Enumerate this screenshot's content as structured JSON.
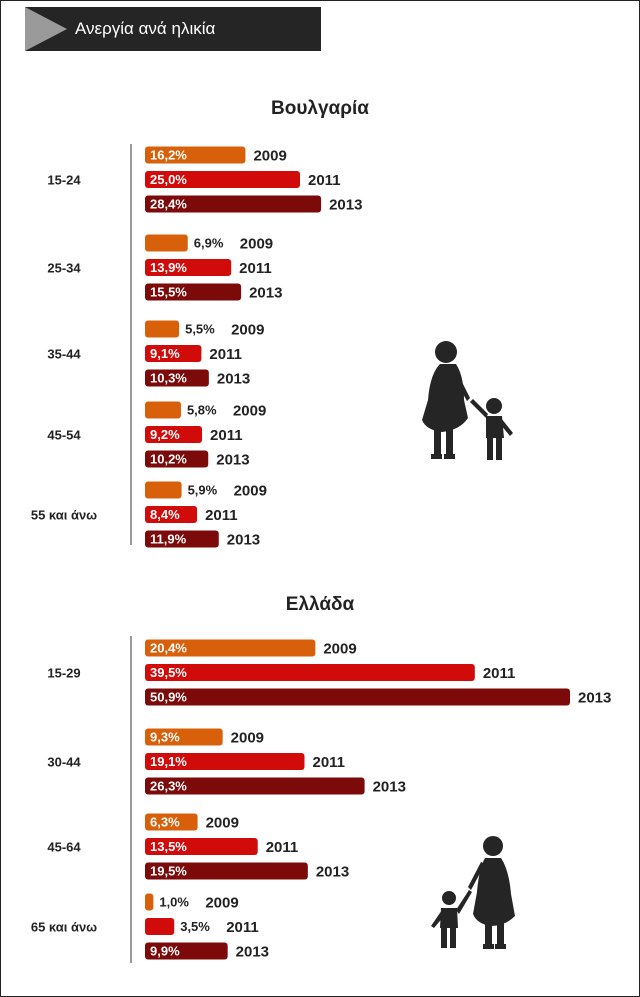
{
  "header": {
    "title": "Ανεργία ανά ηλικία"
  },
  "colors": {
    "2009": "#d9600b",
    "2011": "#d10a0a",
    "2013": "#7d0a0a",
    "header_bg": "#252525",
    "icon": "#252525"
  },
  "icons": [
    "grandmother-child-silhouette",
    "grandmother-child-silhouette"
  ],
  "chart_data": [
    {
      "type": "bar",
      "orientation": "horizontal",
      "title": "Βουλγαρία",
      "categories": [
        "15-24",
        "25-34",
        "35-44",
        "45-54",
        "55 και άνω"
      ],
      "series": [
        {
          "name": "2009",
          "values": [
            16.2,
            6.9,
            5.5,
            5.8,
            5.9
          ],
          "labels": [
            "16,2%",
            "6,9%",
            "5,5%",
            "5,8%",
            "5,9%"
          ]
        },
        {
          "name": "2011",
          "values": [
            25.0,
            13.9,
            9.1,
            9.2,
            8.4
          ],
          "labels": [
            "25,0%",
            "13,9%",
            "9,1%",
            "9,2%",
            "8,4%"
          ]
        },
        {
          "name": "2013",
          "values": [
            28.4,
            15.5,
            10.3,
            10.2,
            11.9
          ],
          "labels": [
            "28,4%",
            "15,5%",
            "10,3%",
            "10,2%",
            "11,9%"
          ]
        }
      ],
      "value_unit": "%",
      "legend": "year label at bar end",
      "grid": false
    },
    {
      "type": "bar",
      "orientation": "horizontal",
      "title": "Ελλάδα",
      "categories": [
        "15-29",
        "30-44",
        "45-64",
        "65 και άνω"
      ],
      "series": [
        {
          "name": "2009",
          "values": [
            20.4,
            9.3,
            6.3,
            1.0
          ],
          "labels": [
            "20,4%",
            "9,3%",
            "6,3%",
            "1,0%"
          ]
        },
        {
          "name": "2011",
          "values": [
            39.5,
            19.1,
            13.5,
            3.5
          ],
          "labels": [
            "39,5%",
            "19,1%",
            "13,5%",
            "3,5%"
          ]
        },
        {
          "name": "2013",
          "values": [
            50.9,
            26.3,
            19.5,
            9.9
          ],
          "labels": [
            "50,9%",
            "26,3%",
            "19,5%",
            "9,9%"
          ]
        }
      ],
      "value_unit": "%",
      "legend": "year label at bar end",
      "grid": false
    }
  ]
}
